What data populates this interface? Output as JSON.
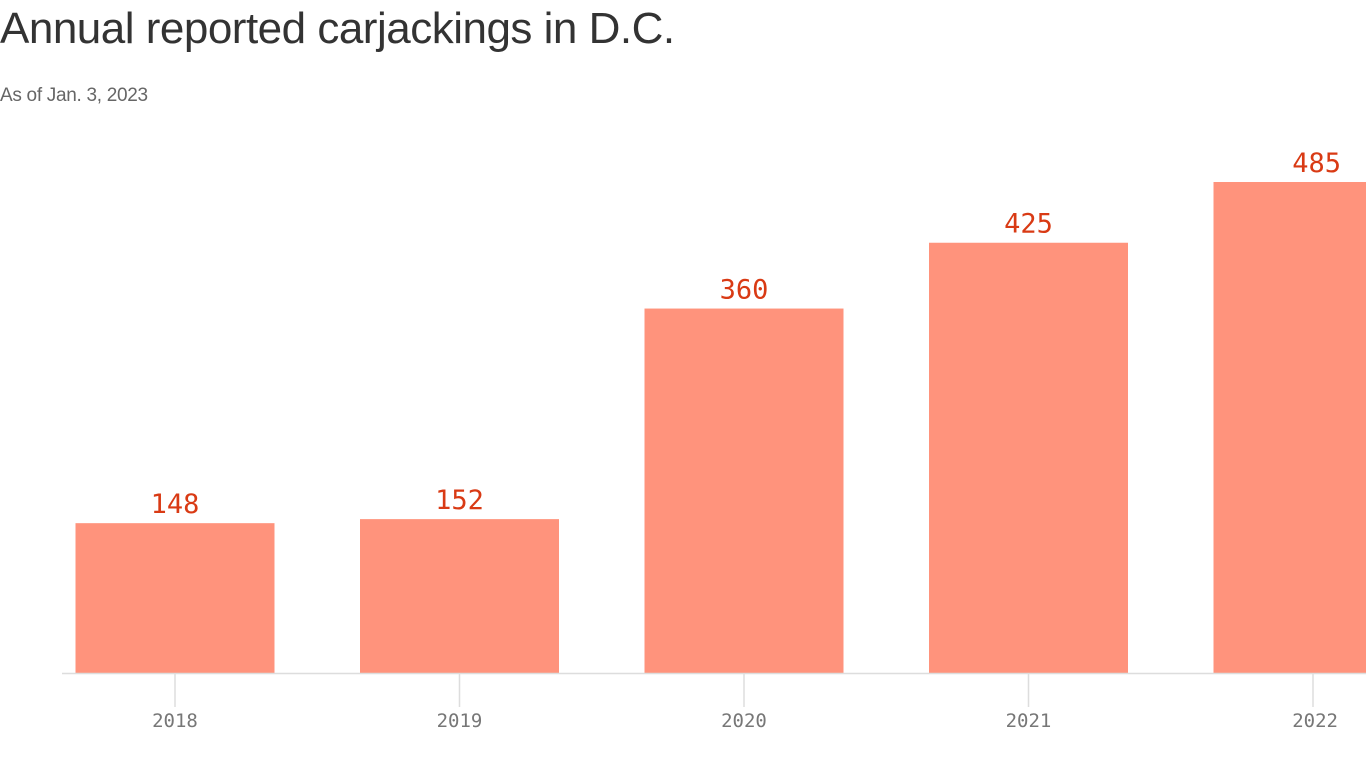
{
  "chart_data": {
    "type": "bar",
    "title": "Annual reported carjackings in D.C.",
    "subtitle": "As of Jan. 3, 2023",
    "categories": [
      "2018",
      "2019",
      "2020",
      "2021",
      "2022"
    ],
    "values": [
      148,
      152,
      360,
      425,
      485
    ],
    "data_labels": [
      "148",
      "152",
      "360",
      "425",
      "485"
    ],
    "xlabel": "",
    "ylabel": "",
    "ylim": [
      0,
      485
    ],
    "grid": false,
    "colors": {
      "bar": "#ff937c",
      "label": "#d93a14",
      "axis": "#dddddd",
      "tick_label": "#777777"
    }
  }
}
